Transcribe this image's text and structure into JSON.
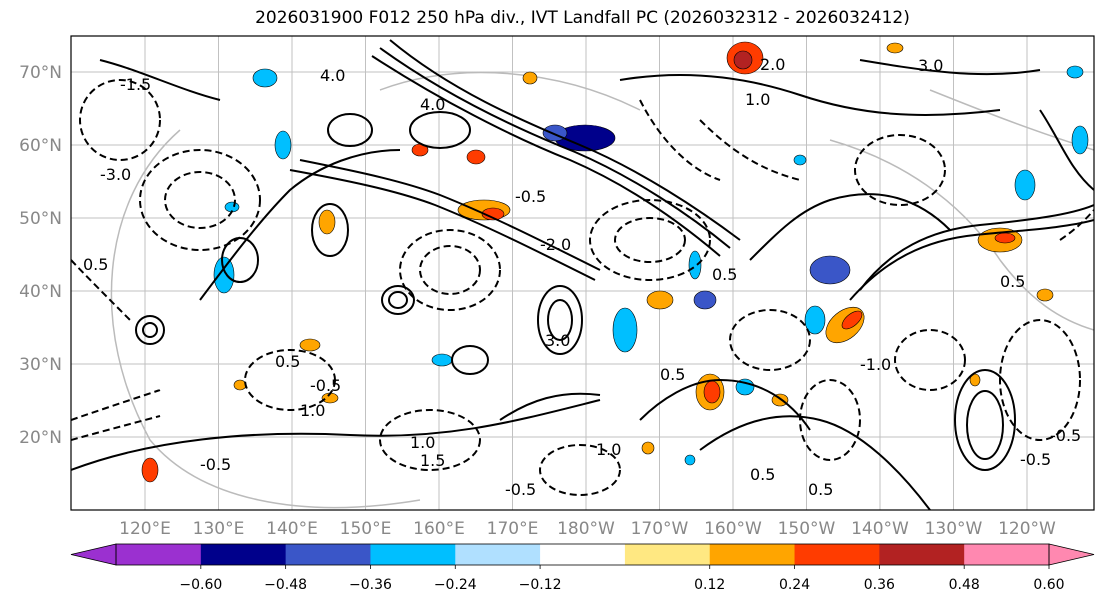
{
  "title": "2026031900 F012 250 hPa div., IVT Landfall PC (2026032312 - 2026032412)",
  "map": {
    "lat_labels": [
      "70°N",
      "60°N",
      "50°N",
      "40°N",
      "30°N",
      "20°N"
    ],
    "lon_labels": [
      "120°E",
      "130°E",
      "140°E",
      "150°E",
      "160°E",
      "170°E",
      "180°W",
      "170°W",
      "160°W",
      "150°W",
      "140°W",
      "130°W",
      "120°W"
    ],
    "contour_labels": [
      "4.0",
      "3.0",
      "2.0",
      "1.0",
      "0.5",
      "1.5",
      "-0.5",
      "-1.0",
      "-1.5",
      "-2.0",
      "-3.0",
      "-0.5"
    ]
  },
  "colorbar": {
    "colors": [
      "#9b30d0",
      "#00008b",
      "#3a56c8",
      "#00bfff",
      "#b0e0ff",
      "#ffffff",
      "#ffe882",
      "#ffa500",
      "#ff3c00",
      "#b22222",
      "#ff88b0"
    ],
    "under_color": "#9b30d0",
    "over_color": "#ff88b0",
    "tick_labels": [
      "−0.60",
      "−0.48",
      "−0.36",
      "−0.24",
      "−0.12",
      "0.12",
      "0.24",
      "0.36",
      "0.48",
      "0.60"
    ]
  }
}
